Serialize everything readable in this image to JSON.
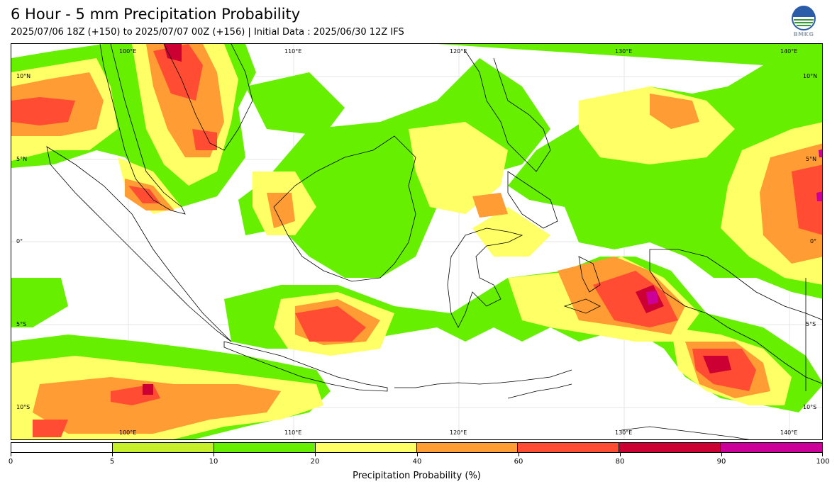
{
  "title": "6 Hour - 5 mm Precipitation Probability",
  "subtitle": "2025/07/06 18Z (+150) to 2025/07/07 00Z (+156) | Initial Data : 2025/06/30 12Z IFS",
  "logo": {
    "text": "BMKG",
    "icon": "bmkg-logo-icon"
  },
  "map": {
    "lon_labels_top": [
      "100°E",
      "110°E",
      "120°E",
      "130°E",
      "140°E"
    ],
    "lon_labels_bottom": [
      "100°E",
      "110°E",
      "120°E",
      "130°E",
      "140°E"
    ],
    "lat_labels_left": [
      "10°N",
      "5°N",
      "0°",
      "5°S",
      "10°S"
    ],
    "lat_labels_right": [
      "10°N",
      "5°N",
      "0°",
      "5°S",
      "10°S"
    ],
    "lon_range": [
      95,
      144
    ],
    "lat_range": [
      -12,
      11.5
    ]
  },
  "colorbar": {
    "title": "Precipitation Probability (%)",
    "levels": [
      0,
      5,
      10,
      20,
      40,
      60,
      80,
      90,
      100
    ],
    "tick_labels": [
      "0",
      "5",
      "10",
      "20",
      "40",
      "60",
      "80",
      "90",
      "100"
    ],
    "colors": [
      "#ffffff",
      "#c6f02a",
      "#66f000",
      "#ffff66",
      "#ff9c33",
      "#ff4c33",
      "#cc0033",
      "#cc0099"
    ]
  }
}
